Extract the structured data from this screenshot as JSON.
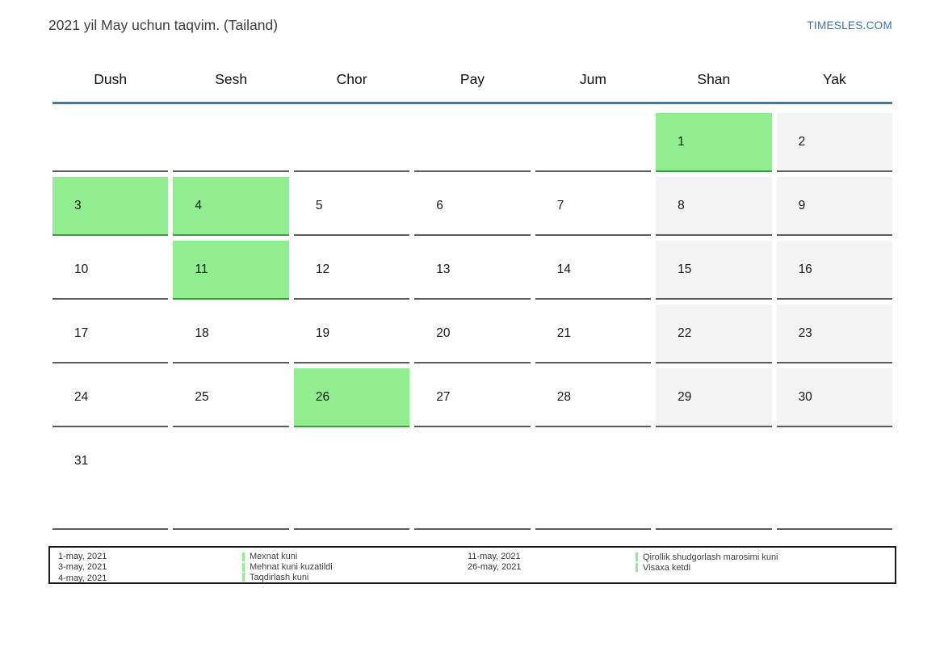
{
  "page": {
    "title": "2021 yil May uchun taqvim. (Tailand)",
    "site_link": "TIMESLES.COM"
  },
  "calendar": {
    "weekdays": [
      "Dush",
      "Sesh",
      "Chor",
      "Pay",
      "Jum",
      "Shan",
      "Yak"
    ],
    "weeks": [
      [
        {
          "day": "",
          "type": "empty"
        },
        {
          "day": "",
          "type": "empty"
        },
        {
          "day": "",
          "type": "empty"
        },
        {
          "day": "",
          "type": "empty"
        },
        {
          "day": "",
          "type": "empty"
        },
        {
          "day": "1",
          "type": "holiday"
        },
        {
          "day": "2",
          "type": "weekend"
        }
      ],
      [
        {
          "day": "3",
          "type": "holiday"
        },
        {
          "day": "4",
          "type": "holiday"
        },
        {
          "day": "5",
          "type": "workday"
        },
        {
          "day": "6",
          "type": "workday"
        },
        {
          "day": "7",
          "type": "workday"
        },
        {
          "day": "8",
          "type": "weekend"
        },
        {
          "day": "9",
          "type": "weekend"
        }
      ],
      [
        {
          "day": "10",
          "type": "workday"
        },
        {
          "day": "11",
          "type": "holiday"
        },
        {
          "day": "12",
          "type": "workday"
        },
        {
          "day": "13",
          "type": "workday"
        },
        {
          "day": "14",
          "type": "workday"
        },
        {
          "day": "15",
          "type": "weekend"
        },
        {
          "day": "16",
          "type": "weekend"
        }
      ],
      [
        {
          "day": "17",
          "type": "workday"
        },
        {
          "day": "18",
          "type": "workday"
        },
        {
          "day": "19",
          "type": "workday"
        },
        {
          "day": "20",
          "type": "workday"
        },
        {
          "day": "21",
          "type": "workday"
        },
        {
          "day": "22",
          "type": "weekend"
        },
        {
          "day": "23",
          "type": "weekend"
        }
      ],
      [
        {
          "day": "24",
          "type": "workday"
        },
        {
          "day": "25",
          "type": "workday"
        },
        {
          "day": "26",
          "type": "holiday"
        },
        {
          "day": "27",
          "type": "workday"
        },
        {
          "day": "28",
          "type": "workday"
        },
        {
          "day": "29",
          "type": "weekend"
        },
        {
          "day": "30",
          "type": "weekend"
        }
      ],
      [
        {
          "day": "31",
          "type": "workday"
        },
        {
          "day": "",
          "type": "empty"
        },
        {
          "day": "",
          "type": "empty"
        },
        {
          "day": "",
          "type": "empty"
        },
        {
          "day": "",
          "type": "empty"
        },
        {
          "day": "",
          "type": "empty"
        },
        {
          "day": "",
          "type": "empty"
        }
      ]
    ]
  },
  "legend": {
    "groups": [
      {
        "entries": [
          {
            "date": "1-may, 2021",
            "label": "Mexnat kuni"
          },
          {
            "date": "3-may, 2021",
            "label": "Mehnat kuni kuzatildi"
          },
          {
            "date": "4-may, 2021",
            "label": "Taqdirlash kuni"
          }
        ]
      },
      {
        "entries": [
          {
            "date": "11-may, 2021",
            "label": "Qirollik shudgorlash marosimi kuni"
          },
          {
            "date": "26-may, 2021",
            "label": "Visaxa ketdi"
          }
        ]
      }
    ]
  },
  "colors": {
    "holiday_green": "#90ee90",
    "holiday_border": "#3f9b3f",
    "weekend_gray": "#f4f4f4",
    "cell_border": "#5c5c5c",
    "header_line_blue": "#53739f",
    "link_blue": "#2e75b6"
  }
}
